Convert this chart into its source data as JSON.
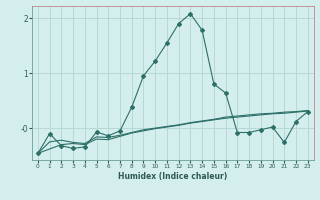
{
  "xlabel": "Humidex (Indice chaleur)",
  "bg_color": "#d4eeed",
  "grid_color": "#b8d8d4",
  "line_color": "#2d7068",
  "spine_color": "#6a9e98",
  "x_ticks": [
    0,
    1,
    2,
    3,
    4,
    5,
    6,
    7,
    8,
    9,
    10,
    11,
    12,
    13,
    14,
    15,
    16,
    17,
    18,
    19,
    20,
    21,
    22,
    23
  ],
  "y_ticks": [
    0,
    1,
    2
  ],
  "ylim": [
    -0.58,
    2.22
  ],
  "xlim": [
    -0.5,
    23.5
  ],
  "line1_x": [
    0,
    1,
    2,
    3,
    4,
    5,
    6,
    7,
    8,
    9,
    10,
    11,
    12,
    13,
    14,
    15,
    16,
    17,
    18,
    19,
    20,
    21,
    22,
    23
  ],
  "line1_y": [
    -0.46,
    -0.1,
    -0.32,
    -0.37,
    -0.34,
    -0.07,
    -0.14,
    -0.05,
    0.38,
    0.95,
    1.22,
    1.55,
    1.9,
    2.08,
    1.78,
    0.8,
    0.64,
    -0.08,
    -0.08,
    -0.03,
    0.02,
    -0.26,
    0.12,
    0.3
  ],
  "line2_x": [
    0,
    1,
    2,
    3,
    4,
    5,
    6,
    7,
    8,
    9,
    10,
    11,
    12,
    13,
    14,
    15,
    16,
    17,
    18,
    19,
    20,
    21,
    22,
    23
  ],
  "line2_y": [
    -0.46,
    -0.38,
    -0.3,
    -0.28,
    -0.3,
    -0.2,
    -0.21,
    -0.15,
    -0.09,
    -0.05,
    -0.01,
    0.02,
    0.05,
    0.09,
    0.12,
    0.15,
    0.18,
    0.2,
    0.22,
    0.24,
    0.26,
    0.27,
    0.29,
    0.31
  ],
  "line3_x": [
    0,
    1,
    2,
    3,
    4,
    5,
    6,
    7,
    8,
    9,
    10,
    11,
    12,
    13,
    14,
    15,
    16,
    17,
    18,
    19,
    20,
    21,
    22,
    23
  ],
  "line3_y": [
    -0.46,
    -0.25,
    -0.22,
    -0.26,
    -0.28,
    -0.16,
    -0.17,
    -0.13,
    -0.08,
    -0.03,
    0.0,
    0.03,
    0.06,
    0.1,
    0.13,
    0.16,
    0.2,
    0.22,
    0.24,
    0.26,
    0.27,
    0.29,
    0.3,
    0.32
  ]
}
